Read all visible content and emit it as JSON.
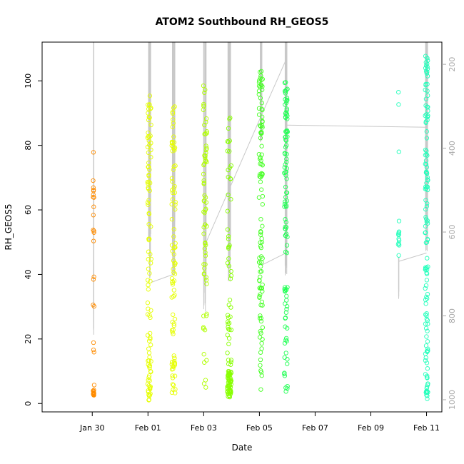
{
  "chart_data": {
    "type": "scatter",
    "title": "ATOM2 Southbound RH_GEOS5",
    "xlabel": "Date",
    "ylabel": "RH_GEOS5",
    "x_ticks": [
      "Jan 30",
      "Feb 01",
      "Feb 03",
      "Feb 05",
      "Feb 07",
      "Feb 09",
      "Feb 11"
    ],
    "x_tick_days": [
      30,
      32,
      34,
      36,
      38,
      40,
      42
    ],
    "xlim_days": [
      28.2,
      42.55
    ],
    "ylim": [
      -2.6,
      112
    ],
    "y_ticks": [
      0,
      20,
      40,
      60,
      80,
      100
    ],
    "right_axis": {
      "label": "",
      "ticks": [
        200,
        400,
        600,
        800,
        1000
      ],
      "lim": [
        1029,
        147
      ],
      "color": "#aaaaaa"
    },
    "grid": false,
    "legend": "none",
    "series": [
      {
        "color": "#ff8c00",
        "profiles": [
          {
            "center": 30.05,
            "width": 0.04,
            "seed": 11,
            "clusters": [
              {
                "n": 14,
                "lo": 2.5,
                "hi": 4.5
              },
              {
                "n": 4,
                "lo": 5,
                "hi": 20
              },
              {
                "n": 4,
                "lo": 28,
                "hi": 40
              },
              {
                "n": 14,
                "lo": 49,
                "hi": 78
              }
            ]
          }
        ]
      },
      {
        "color": "#e6ff00",
        "profiles": [
          {
            "center": 32.05,
            "width": 0.13,
            "seed": 21,
            "clusters": [
              {
                "n": 28,
                "lo": 1,
                "hi": 15
              },
              {
                "n": 14,
                "lo": 15,
                "hi": 35
              },
              {
                "n": 18,
                "lo": 35,
                "hi": 60
              },
              {
                "n": 40,
                "lo": 60,
                "hi": 97
              }
            ]
          },
          {
            "center": 32.92,
            "width": 0.13,
            "seed": 22,
            "clusters": [
              {
                "n": 24,
                "lo": 2.5,
                "hi": 15
              },
              {
                "n": 18,
                "lo": 20,
                "hi": 40
              },
              {
                "n": 22,
                "lo": 40,
                "hi": 65
              },
              {
                "n": 30,
                "lo": 65,
                "hi": 92
              }
            ]
          }
        ]
      },
      {
        "color": "#b0ff00",
        "profiles": [
          {
            "center": 34.05,
            "width": 0.13,
            "seed": 31,
            "clusters": [
              {
                "n": 12,
                "lo": 4,
                "hi": 28
              },
              {
                "n": 28,
                "lo": 35,
                "hi": 65
              },
              {
                "n": 30,
                "lo": 65,
                "hi": 99
              }
            ]
          }
        ]
      },
      {
        "color": "#88ff00",
        "profiles": [
          {
            "center": 34.92,
            "width": 0.14,
            "seed": 41,
            "clusters": [
              {
                "n": 55,
                "lo": 2,
                "hi": 10
              },
              {
                "n": 22,
                "lo": 10,
                "hi": 33
              },
              {
                "n": 14,
                "lo": 35,
                "hi": 60
              },
              {
                "n": 16,
                "lo": 60,
                "hi": 95
              }
            ]
          }
        ]
      },
      {
        "color": "#44ff22",
        "profiles": [
          {
            "center": 36.05,
            "width": 0.13,
            "seed": 51,
            "clusters": [
              {
                "n": 18,
                "lo": 2,
                "hi": 29
              },
              {
                "n": 40,
                "lo": 30,
                "hi": 70
              },
              {
                "n": 50,
                "lo": 70,
                "hi": 103
              }
            ]
          }
        ]
      },
      {
        "color": "#22ff55",
        "profiles": [
          {
            "center": 36.95,
            "width": 0.12,
            "seed": 61,
            "clusters": [
              {
                "n": 32,
                "lo": 0.5,
                "hi": 38
              },
              {
                "n": 20,
                "lo": 46,
                "hi": 65
              },
              {
                "n": 50,
                "lo": 65,
                "hi": 100
              }
            ]
          }
        ]
      },
      {
        "color": "#22ffbb",
        "profiles": [
          {
            "center": 41.0,
            "width": 0.03,
            "seed": 71,
            "clusters": [
              {
                "n": 2,
                "lo": 90,
                "hi": 99
              },
              {
                "n": 1,
                "lo": 78,
                "hi": 78
              },
              {
                "n": 12,
                "lo": 45,
                "hi": 57
              }
            ]
          },
          {
            "center": 42.0,
            "width": 0.1,
            "seed": 72,
            "clusters": [
              {
                "n": 45,
                "lo": 1,
                "hi": 38
              },
              {
                "n": 35,
                "lo": 38,
                "hi": 70
              },
              {
                "n": 50,
                "lo": 70,
                "hi": 108
              }
            ]
          }
        ]
      }
    ],
    "pressure_profiles": [
      {
        "center": 30.05,
        "spread": 0.005,
        "pmin": 147,
        "pmax": 845
      },
      {
        "center": 32.05,
        "spread": 0.05,
        "pmin": 147,
        "pmax": 710
      },
      {
        "center": 32.92,
        "spread": 0.05,
        "pmin": 147,
        "pmax": 705
      },
      {
        "center": 34.05,
        "spread": 0.05,
        "pmin": 147,
        "pmax": 790
      },
      {
        "center": 34.92,
        "spread": 0.05,
        "pmin": 147,
        "pmax": 725
      },
      {
        "center": 36.05,
        "spread": 0.04,
        "pmin": 147,
        "pmax": 390
      },
      {
        "center": 36.95,
        "spread": 0.04,
        "pmin": 147,
        "pmax": 710
      },
      {
        "center": 41.0,
        "spread": 0.003,
        "pmin": 660,
        "pmax": 760
      },
      {
        "center": 42.0,
        "spread": 0.04,
        "pmin": 147,
        "pmax": 660
      }
    ],
    "pressure_connectors": [
      {
        "x1": 32.12,
        "p1": 720,
        "x2": 32.95,
        "p2": 700
      },
      {
        "x1": 34.05,
        "p1": 630,
        "x2": 36.05,
        "p2": 325
      },
      {
        "x1": 36.05,
        "p1": 325,
        "x2": 36.95,
        "p2": 190
      },
      {
        "x1": 36.05,
        "p1": 680,
        "x2": 36.95,
        "p2": 650
      },
      {
        "x1": 36.95,
        "p1": 345,
        "x2": 42.0,
        "p2": 350
      },
      {
        "x1": 41.0,
        "p1": 670,
        "x2": 42.0,
        "p2": 650
      }
    ]
  }
}
